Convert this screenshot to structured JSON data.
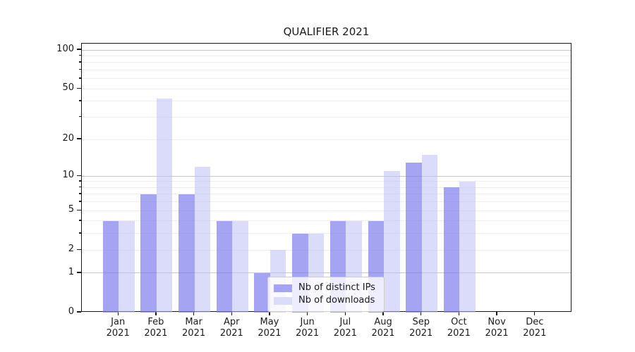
{
  "title": "QUALIFIER 2021",
  "colors": {
    "distinct_ips_bar": "rgba(125,125,236,0.70)",
    "downloads_bar": "rgba(190,190,245,0.55)",
    "distinct_ips_solid": "#a4a4f2",
    "downloads_solid": "#dbdbfa",
    "grid_major": "#c6c6c6",
    "grid_minor": "#ededed",
    "axis": "#1a1a1a"
  },
  "chart_data": {
    "type": "bar",
    "title": "QUALIFIER 2021",
    "categories": [
      "Jan 2021",
      "Feb 2021",
      "Mar 2021",
      "Apr 2021",
      "May 2021",
      "Jun 2021",
      "Jul 2021",
      "Aug 2021",
      "Sep 2021",
      "Oct 2021",
      "Nov 2021",
      "Dec 2021"
    ],
    "series": [
      {
        "name": "Nb of distinct IPs",
        "values": [
          4,
          7,
          7,
          4,
          1,
          3,
          4,
          4,
          13,
          8,
          0,
          0
        ]
      },
      {
        "name": "Nb of downloads",
        "values": [
          4,
          42,
          12,
          4,
          2,
          3,
          4,
          11,
          15,
          9,
          0,
          0
        ]
      }
    ],
    "xlabel": "",
    "ylabel": "",
    "yscale": "log1p",
    "yticks": [
      0,
      1,
      2,
      5,
      10,
      20,
      50,
      100
    ],
    "ytick_labels": [
      "0",
      "1",
      "2",
      "5",
      "10",
      "20",
      "50",
      "100"
    ],
    "major_grid_values": [
      1,
      10,
      100
    ],
    "minor_grid_values": [
      2,
      3,
      4,
      5,
      6,
      7,
      8,
      9,
      20,
      30,
      40,
      50,
      60,
      70,
      80,
      90
    ],
    "ylim": [
      0,
      113
    ],
    "grid": true,
    "legend_position": "lower center"
  }
}
